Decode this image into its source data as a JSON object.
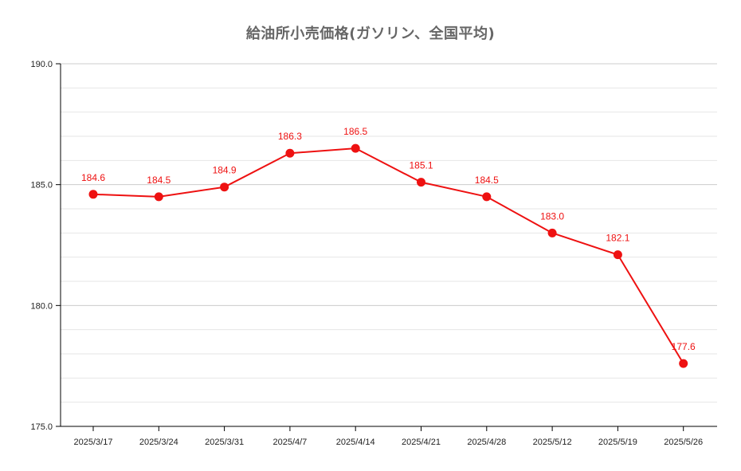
{
  "title": "給油所小売価格(ガソリン、全国平均)",
  "colors": {
    "series": "#ee1111",
    "axis": "#000000",
    "grid_major": "#cccccc",
    "grid_minor": "#e6e6e6",
    "title": "#666666"
  },
  "chart_data": {
    "type": "line",
    "title": "給油所小売価格(ガソリン、全国平均)",
    "xlabel": "",
    "ylabel": "",
    "categories": [
      "2025/3/17",
      "2025/3/24",
      "2025/3/31",
      "2025/4/7",
      "2025/4/14",
      "2025/4/21",
      "2025/4/28",
      "2025/5/12",
      "2025/5/19",
      "2025/5/26"
    ],
    "series": [
      {
        "values": [
          184.6,
          184.5,
          184.9,
          186.3,
          186.5,
          185.1,
          184.5,
          183.0,
          182.1,
          177.6
        ],
        "labels": [
          "184.6",
          "184.5",
          "184.9",
          "186.3",
          "186.5",
          "185.1",
          "184.5",
          "183.0",
          "182.1",
          "177.6"
        ]
      }
    ],
    "ylim": [
      175.0,
      190.0
    ],
    "yticks": [
      175.0,
      180.0,
      185.0,
      190.0
    ],
    "ytick_labels": [
      "175.0",
      "180.0",
      "185.0",
      "190.0"
    ],
    "y_minor_step": 1.0,
    "grid": true,
    "legend": "none"
  }
}
